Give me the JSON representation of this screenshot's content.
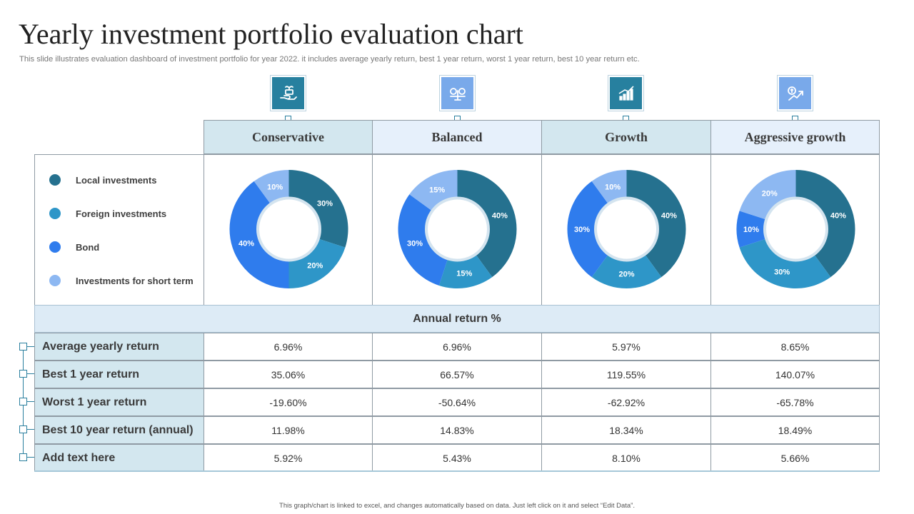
{
  "title": "Yearly investment portfolio evaluation chart",
  "subtitle": "This slide illustrates evaluation dashboard of investment portfolio for year 2022. it includes average yearly return, best 1 year return, worst 1 year return, best 10 year return etc.",
  "footer": "This graph/chart is linked to excel, and changes automatically based on data. Just left click on it and select “Edit Data”.",
  "colors": {
    "local": "#25718f",
    "foreign": "#2e96c8",
    "bond": "#2f7ced",
    "short": "#8db8f2",
    "icon_dark": "#27809f",
    "icon_light": "#79a9ea",
    "head_dark": "#d3e7ef",
    "head_light": "#e6f0fb"
  },
  "icons": [
    "money-hand-icon",
    "balance-scale-icon",
    "growth-bars-icon",
    "growth-arrow-icon"
  ],
  "legend": [
    {
      "label": "Local investments",
      "color": "#25718f"
    },
    {
      "label": "Foreign investments",
      "color": "#2e96c8"
    },
    {
      "label": "Bond",
      "color": "#2f7ced"
    },
    {
      "label": "Investments for short term",
      "color": "#8db8f2"
    }
  ],
  "chart_data": [
    {
      "type": "pie",
      "title": "Conservative",
      "categories": [
        "Local investments",
        "Foreign investments",
        "Bond",
        "Investments for short term"
      ],
      "values": [
        30,
        20,
        40,
        10
      ],
      "labels": [
        "30%",
        "20%",
        "40%",
        "10%"
      ]
    },
    {
      "type": "pie",
      "title": "Balanced",
      "categories": [
        "Local investments",
        "Foreign investments",
        "Bond",
        "Investments for short term"
      ],
      "values": [
        40,
        15,
        30,
        15
      ],
      "labels": [
        "40%",
        "15%",
        "30%",
        "15%"
      ]
    },
    {
      "type": "pie",
      "title": "Growth",
      "categories": [
        "Local investments",
        "Foreign investments",
        "Bond",
        "Investments for short term"
      ],
      "values": [
        40,
        20,
        30,
        10
      ],
      "labels": [
        "40%",
        "20%",
        "30%",
        "10%"
      ]
    },
    {
      "type": "pie",
      "title": "Aggressive growth",
      "categories": [
        "Local investments",
        "Foreign investments",
        "Bond",
        "Investments for short term"
      ],
      "values": [
        40,
        30,
        10,
        20
      ],
      "labels": [
        "40%",
        "30%",
        "10%",
        "20%"
      ]
    }
  ],
  "table": {
    "section_header": "Annual return %",
    "rows": [
      {
        "label": "Average yearly return",
        "values": [
          "6.96%",
          "6.96%",
          "5.97%",
          "8.65%"
        ]
      },
      {
        "label": "Best 1 year return",
        "values": [
          "35.06%",
          "66.57%",
          "119.55%",
          "140.07%"
        ]
      },
      {
        "label": "Worst 1 year return",
        "values": [
          "-19.60%",
          "-50.64%",
          "-62.92%",
          "-65.78%"
        ]
      },
      {
        "label": "Best 10 year return (annual)",
        "values": [
          "11.98%",
          "14.83%",
          "18.34%",
          "18.49%"
        ]
      },
      {
        "label": "Add text here",
        "values": [
          "5.92%",
          "5.43%",
          "8.10%",
          "5.66%"
        ]
      }
    ]
  }
}
